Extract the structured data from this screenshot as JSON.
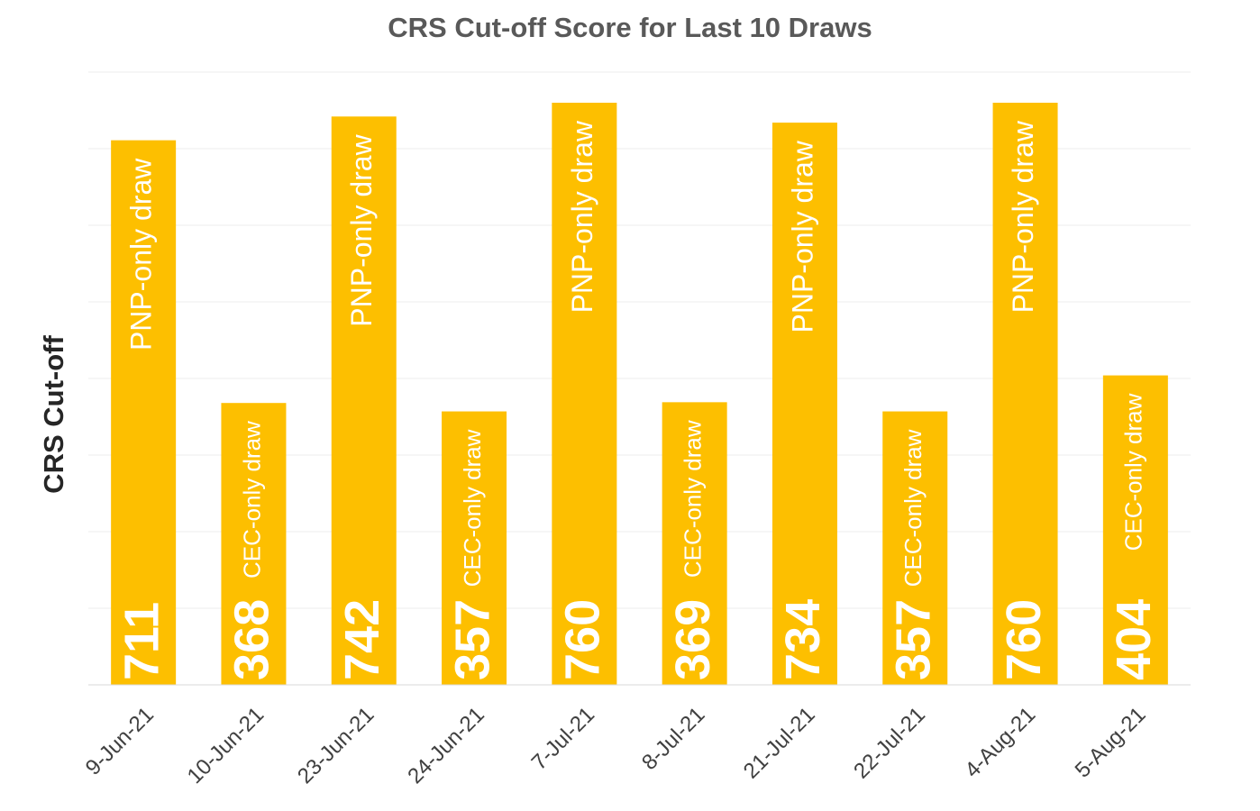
{
  "chart_data": {
    "type": "bar",
    "title": "CRS Cut-off Score for Last 10 Draws",
    "y_label": "CRS Cut-off",
    "categories": [
      "9-Jun-21",
      "10-Jun-21",
      "23-Jun-21",
      "24-Jun-21",
      "7-Jul-21",
      "8-Jul-21",
      "21-Jul-21",
      "22-Jul-21",
      "4-Aug-21",
      "5-Aug-21"
    ],
    "values": [
      711,
      368,
      742,
      357,
      760,
      369,
      734,
      357,
      760,
      404
    ],
    "bar_notes": [
      "PNP-only draw",
      "CEC-only draw",
      "PNP-only draw",
      "CEC-only draw",
      "PNP-only draw",
      "CEC-only draw",
      "PNP-only draw",
      "CEC-only draw",
      "PNP-only draw",
      "CEC-only draw"
    ],
    "color": "#fdbf00",
    "ylim": [
      0,
      800
    ],
    "yticks": [
      0,
      100,
      200,
      300,
      400,
      500,
      600,
      700,
      800
    ],
    "grid": true
  }
}
